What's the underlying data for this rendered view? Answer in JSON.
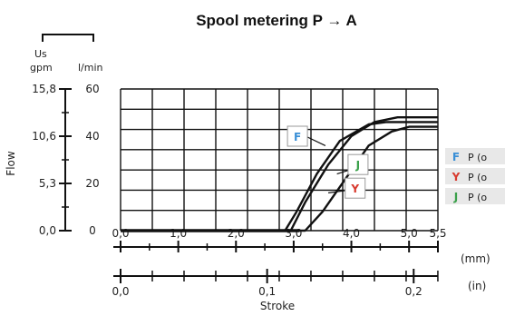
{
  "chart_data": {
    "type": "line",
    "title": "Spool metering P → A",
    "xlabel": "Stroke",
    "ylabel": "Flow",
    "xlim": [
      0,
      5.5
    ],
    "ylim": [
      0,
      60
    ],
    "grid": true,
    "x_unit_primary": "(mm)",
    "x_unit_secondary": "(in)",
    "x_ticks_mm": [
      "0,0",
      "1,0",
      "2,0",
      "3,0",
      "4,0",
      "5,0",
      "5,5"
    ],
    "x_ticks_mm_values": [
      0,
      1,
      2,
      3,
      4,
      5,
      5.5
    ],
    "x_ticks_in": [
      {
        "label": "0,0",
        "mm": 0
      },
      {
        "label": "0,1",
        "mm": 2.54
      },
      {
        "label": "0,2",
        "mm": 5.08
      }
    ],
    "y_left_unit": "Us gpm",
    "y_left_unit_line1": "Us",
    "y_left_unit_line2": "gpm",
    "y_right_unit": "l/min",
    "y_ticks_gpm": [
      {
        "label": "15,8",
        "lpm": 60
      },
      {
        "label": "10,6",
        "lpm": 40
      },
      {
        "label": "5,3",
        "lpm": 20
      },
      {
        "label": "0,0",
        "lpm": 0
      }
    ],
    "y_ticks_lpm": [
      "60",
      "40",
      "20",
      "0"
    ],
    "y_ticks_lpm_values": [
      60,
      40,
      20,
      0
    ],
    "series": [
      {
        "name": "F",
        "color": "#3a8fd6",
        "x": [
          0,
          2.85,
          3.05,
          3.4,
          3.8,
          4.3,
          4.6,
          5.5
        ],
        "y": [
          0,
          0,
          8,
          24,
          38,
          45,
          46,
          46
        ]
      },
      {
        "name": "Y",
        "color": "#d83a2e",
        "x": [
          0,
          2.95,
          3.2,
          3.6,
          4.0,
          4.4,
          4.8,
          5.5
        ],
        "y": [
          0,
          0,
          12,
          28,
          40,
          46,
          48,
          48
        ]
      },
      {
        "name": "J",
        "color": "#3aa04a",
        "x": [
          0,
          3.2,
          3.5,
          3.9,
          4.3,
          4.7,
          5.0,
          5.5
        ],
        "y": [
          0,
          0,
          8,
          22,
          36,
          42,
          44,
          44
        ]
      }
    ],
    "annotations": [
      {
        "letter": "F",
        "color": "#3a8fd6"
      },
      {
        "letter": "J",
        "color": "#3aa04a"
      },
      {
        "letter": "Y",
        "color": "#d83a2e"
      }
    ],
    "legend": [
      {
        "letter": "F",
        "text": "P (o",
        "color": "#3a8fd6"
      },
      {
        "letter": "Y",
        "text": "P (o",
        "color": "#d83a2e"
      },
      {
        "letter": "J",
        "text": "P (o",
        "color": "#3aa04a"
      }
    ]
  }
}
